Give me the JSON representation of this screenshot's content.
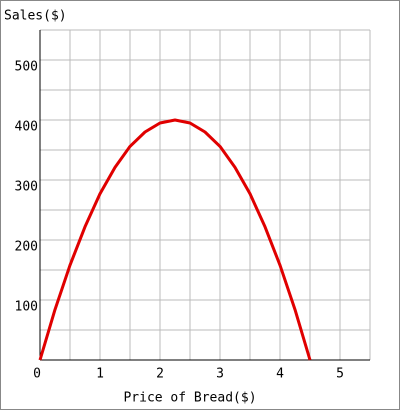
{
  "chart_data": {
    "type": "line",
    "y_label": "Sales($)",
    "x_label": "Price of Bread($)",
    "x": [
      0,
      0.25,
      0.5,
      0.75,
      1,
      1.25,
      1.5,
      1.75,
      2,
      2.25,
      2.5,
      2.75,
      3,
      3.25,
      3.5,
      3.75,
      4,
      4.25,
      4.5
    ],
    "series": [
      {
        "color": "#e00000",
        "values": [
          0,
          84,
          158,
          222,
          277,
          321,
          356,
          380,
          395,
          400,
          395,
          380,
          356,
          321,
          277,
          222,
          158,
          84,
          0
        ]
      }
    ],
    "xlim": [
      0,
      5.5
    ],
    "ylim": [
      0,
      550
    ],
    "xticks": [
      0,
      1,
      2,
      3,
      4,
      5
    ],
    "yticks": [
      100,
      200,
      300,
      400,
      500
    ],
    "xgridlines": [
      0.5,
      1,
      1.5,
      2,
      2.5,
      3,
      3.5,
      4,
      4.5,
      5,
      5.5
    ],
    "ygridlines": [
      50,
      100,
      150,
      200,
      250,
      300,
      350,
      400,
      450,
      500,
      550
    ],
    "grid": true
  }
}
